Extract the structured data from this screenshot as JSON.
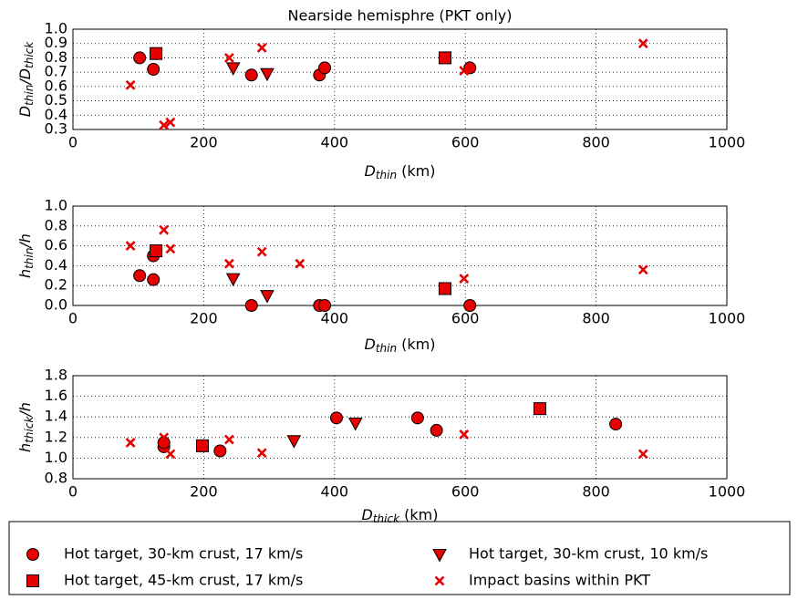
{
  "chart_data": [
    {
      "type": "scatter",
      "title": "Nearside hemisphre (PKT only)",
      "xlabel": [
        {
          "text": "D"
        },
        {
          "text": "thin",
          "sub": true
        },
        {
          "text": " (km)"
        }
      ],
      "ylabel": [
        {
          "text": "D"
        },
        {
          "text": "thin",
          "sub": true
        },
        {
          "text": "/D"
        },
        {
          "text": "thick",
          "sub": true
        }
      ],
      "xlim": [
        0,
        1000
      ],
      "xticks": [
        0,
        200,
        400,
        600,
        800,
        1000
      ],
      "ylim": [
        0.3,
        1.0
      ],
      "yticks": [
        0.3,
        0.4,
        0.5,
        0.6,
        0.7,
        0.8,
        0.9,
        {
          "value": 1,
          "label": "1.0"
        }
      ],
      "grid": true,
      "series": [
        {
          "name": "Hot target, 30-km crust, 17 km/s",
          "marker": "circle",
          "color": "#e60000",
          "x": [
            102,
            123,
            273,
            377,
            385,
            607
          ],
          "y": [
            0.8,
            0.72,
            0.68,
            0.68,
            0.73,
            0.73
          ]
        },
        {
          "name": "Hot target, 45-km crust, 17 km/s",
          "marker": "square",
          "color": "#e60000",
          "x": [
            127,
            569
          ],
          "y": [
            0.83,
            0.8
          ]
        },
        {
          "name": "Hot target, 30-km crust, 10 km/s",
          "marker": "triangle",
          "color": "#e60000",
          "x": [
            245,
            297
          ],
          "y": [
            0.73,
            0.69
          ]
        },
        {
          "name": "Impact basins within PKT",
          "marker": "x",
          "color": "#e60000",
          "x": [
            88,
            139,
            149,
            239,
            289,
            598,
            872
          ],
          "y": [
            0.61,
            0.33,
            0.35,
            0.8,
            0.87,
            0.71,
            0.9
          ]
        }
      ]
    },
    {
      "type": "scatter",
      "xlabel": [
        {
          "text": "D"
        },
        {
          "text": "thin",
          "sub": true
        },
        {
          "text": " (km)"
        }
      ],
      "ylabel": [
        {
          "text": "h"
        },
        {
          "text": "thin",
          "sub": true
        },
        {
          "text": "/h"
        }
      ],
      "xlim": [
        0,
        1000
      ],
      "xticks": [
        0,
        200,
        400,
        600,
        800,
        1000
      ],
      "ylim": [
        0,
        1
      ],
      "yticks": [
        {
          "value": 0,
          "label": "0.0"
        },
        0.2,
        0.4,
        0.6,
        0.8,
        {
          "value": 1,
          "label": "1.0"
        }
      ],
      "grid": true,
      "series": [
        {
          "marker": "circle",
          "color": "#e60000",
          "x": [
            102,
            123,
            123,
            273,
            377,
            385,
            607
          ],
          "y": [
            0.3,
            0.26,
            0.5,
            0,
            0,
            0,
            0
          ]
        },
        {
          "marker": "square",
          "color": "#e60000",
          "x": [
            127,
            569
          ],
          "y": [
            0.55,
            0.17
          ]
        },
        {
          "marker": "triangle",
          "color": "#e60000",
          "x": [
            245,
            297
          ],
          "y": [
            0.27,
            0.1
          ]
        },
        {
          "marker": "x",
          "color": "#e60000",
          "x": [
            88,
            139,
            149,
            239,
            289,
            347,
            598,
            872
          ],
          "y": [
            0.6,
            0.76,
            0.57,
            0.42,
            0.54,
            0.42,
            0.27,
            0.36
          ]
        }
      ]
    },
    {
      "type": "scatter",
      "xlabel": [
        {
          "text": "D"
        },
        {
          "text": "thick",
          "sub": true
        },
        {
          "text": " (km)"
        }
      ],
      "ylabel": [
        {
          "text": "h"
        },
        {
          "text": "thick",
          "sub": true
        },
        {
          "text": "/h"
        }
      ],
      "xlim": [
        0,
        1000
      ],
      "xticks": [
        0,
        200,
        400,
        600,
        800,
        1000
      ],
      "ylim": [
        0.8,
        1.8
      ],
      "yticks": [
        0.8,
        {
          "value": 1,
          "label": "1.0"
        },
        1.2,
        1.4,
        1.6,
        1.8
      ],
      "grid": true,
      "series": [
        {
          "marker": "circle",
          "color": "#e60000",
          "x": [
            139,
            139,
            225,
            403,
            527,
            556,
            830
          ],
          "y": [
            1.11,
            1.15,
            1.07,
            1.39,
            1.39,
            1.27,
            1.33
          ]
        },
        {
          "marker": "square",
          "color": "#e60000",
          "x": [
            198,
            714
          ],
          "y": [
            1.12,
            1.48
          ]
        },
        {
          "marker": "triangle",
          "color": "#e60000",
          "x": [
            432,
            338
          ],
          "y": [
            1.34,
            1.17
          ]
        },
        {
          "marker": "x",
          "color": "#e60000",
          "x": [
            88,
            139,
            149,
            239,
            289,
            598,
            872
          ],
          "y": [
            1.15,
            1.2,
            1.04,
            1.18,
            1.05,
            1.23,
            1.04
          ]
        }
      ]
    }
  ]
}
